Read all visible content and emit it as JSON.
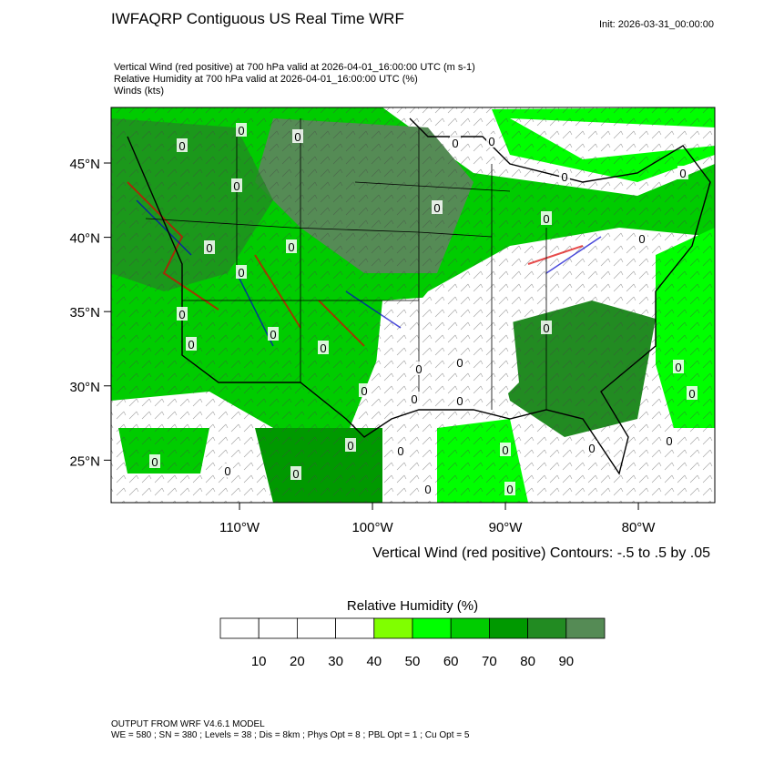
{
  "header": {
    "title": "IWFAQRP Contiguous US Real Time WRF",
    "init": "Init: 2026-03-31_00:00:00",
    "lines": [
      "Vertical Wind (red positive) at 700 hPa valid at 2026-04-01_16:00:00 UTC   (m s-1)",
      "Relative Humidity at 700 hPa valid at 2026-04-01_16:00:00 UTC   (%)",
      "Winds   (kts)"
    ]
  },
  "map": {
    "xlim": [
      -119.66,
      -74.25
    ],
    "ylim": [
      22.14,
      48.74
    ],
    "yticks": [
      {
        "value": 25,
        "label": "25°N"
      },
      {
        "value": 30,
        "label": "30°N"
      },
      {
        "value": 35,
        "label": "35°N"
      },
      {
        "value": 40,
        "label": "40°N"
      },
      {
        "value": 45,
        "label": "45°N"
      }
    ],
    "xticks": [
      {
        "value": -110,
        "label": "110°W"
      },
      {
        "value": -100,
        "label": "100°W"
      },
      {
        "value": -90,
        "label": "90°W"
      },
      {
        "value": -80,
        "label": "80°W"
      }
    ],
    "contour_label": "0",
    "contour_note": "Vertical Wind (red positive) Contours: -.5 to .5 by .05"
  },
  "colorbar": {
    "title": "Relative Humidity  (%)",
    "levels": [
      10,
      20,
      30,
      40,
      50,
      60,
      70,
      80,
      90
    ],
    "colors": [
      "#ffffff",
      "#ffffff",
      "#ffffff",
      "#ffffff",
      "#80ff00",
      "#00ff00",
      "#00cc00",
      "#009900",
      "#228b22",
      "#558b55"
    ]
  },
  "footer": [
    "OUTPUT FROM WRF V4.6.1 MODEL",
    "WE = 580 ; SN = 380 ; Levels = 38 ; Dis = 8km ; Phys Opt = 8 ; PBL Opt = 1 ; Cu Opt = 5"
  ]
}
